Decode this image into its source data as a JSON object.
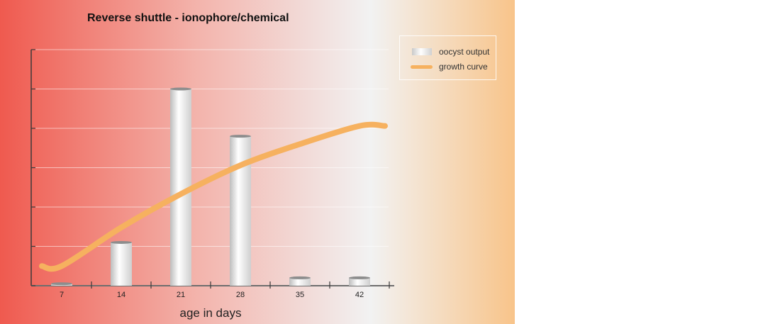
{
  "chart_data": {
    "type": "bar",
    "title": "Reverse shuttle - ionophore/chemical",
    "xlabel": "age in days",
    "ylabel": "",
    "categories": [
      "7",
      "14",
      "21",
      "28",
      "35",
      "42"
    ],
    "ylim": [
      0,
      6
    ],
    "grid": true,
    "legend_position": "top-right",
    "series": [
      {
        "name": "oocyst output",
        "type": "bar",
        "values": [
          0.05,
          1.1,
          5.0,
          3.8,
          0.2,
          0.2
        ]
      },
      {
        "name": "growth curve",
        "type": "line",
        "values": [
          0.5,
          1.48,
          2.33,
          3.06,
          3.6,
          4.06
        ],
        "extends_to_x": 45
      }
    ],
    "colors": {
      "growth_curve": "#f6b15f",
      "background_left": "#ef5a4f",
      "background_mid": "#f2f2f2",
      "background_right": "#f8c48a"
    }
  }
}
